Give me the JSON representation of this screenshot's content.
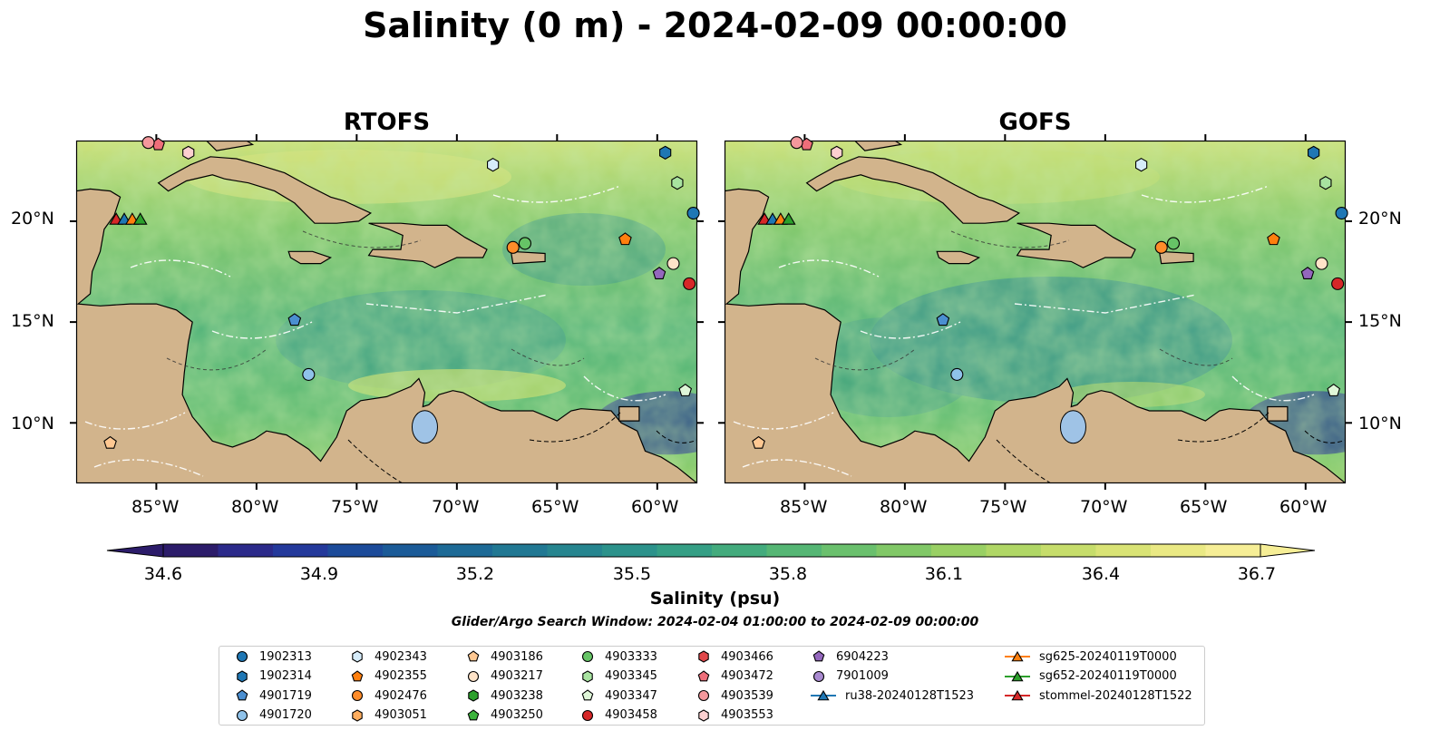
{
  "title": "Salinity (0 m) - 2024-02-09 00:00:00",
  "panels": [
    {
      "title": "RTOFS"
    },
    {
      "title": "GOFS"
    }
  ],
  "lon_ticks": [
    "85°W",
    "80°W",
    "75°W",
    "70°W",
    "65°W",
    "60°W"
  ],
  "lat_ticks": [
    "20°N",
    "15°N",
    "10°N"
  ],
  "map_extent": {
    "lon": [
      -89,
      -58
    ],
    "lat": [
      7,
      24
    ]
  },
  "colorbar": {
    "label": "Salinity (psu)",
    "ticks": [
      "34.6",
      "34.9",
      "35.2",
      "35.5",
      "35.8",
      "36.1",
      "36.4",
      "36.7"
    ],
    "range": [
      34.6,
      36.7
    ],
    "colors": [
      "#2c1c6a",
      "#2b2a8a",
      "#24399b",
      "#1c4b9a",
      "#1b5b98",
      "#1d6a96",
      "#217893",
      "#26858f",
      "#2c928b",
      "#359f85",
      "#43ab7d",
      "#55b674",
      "#6ac06d",
      "#81c867",
      "#99d064",
      "#b0d766",
      "#c6dd6b",
      "#d9e375",
      "#eae984",
      "#f6ee96"
    ]
  },
  "search_window": "Glider/Argo Search Window: 2024-02-04 01:00:00 to 2024-02-09 00:00:00",
  "legend": [
    {
      "label": "1902313",
      "shape": "circle",
      "color": "#1f77b4"
    },
    {
      "label": "1902314",
      "shape": "hexagon",
      "color": "#1f77b4"
    },
    {
      "label": "4901719",
      "shape": "pentagon",
      "color": "#4b8fd1"
    },
    {
      "label": "4901720",
      "shape": "circle",
      "color": "#8fc2ea"
    },
    {
      "label": "4902343",
      "shape": "hexagon",
      "color": "#d6ecfa"
    },
    {
      "label": "4902355",
      "shape": "pentagon",
      "color": "#ff7f0e"
    },
    {
      "label": "4902476",
      "shape": "circle",
      "color": "#ff8c2a"
    },
    {
      "label": "4903051",
      "shape": "hexagon",
      "color": "#ffad5e"
    },
    {
      "label": "4903186",
      "shape": "pentagon",
      "color": "#ffc892"
    },
    {
      "label": "4903217",
      "shape": "circle",
      "color": "#ffe3c8"
    },
    {
      "label": "4903238",
      "shape": "hexagon",
      "color": "#2ca02c"
    },
    {
      "label": "4903250",
      "shape": "pentagon",
      "color": "#3cb33c"
    },
    {
      "label": "4903333",
      "shape": "circle",
      "color": "#66c466"
    },
    {
      "label": "4903345",
      "shape": "hexagon",
      "color": "#a8e3a0"
    },
    {
      "label": "4903347",
      "shape": "pentagon",
      "color": "#dff6d8"
    },
    {
      "label": "4903458",
      "shape": "circle",
      "color": "#d62728"
    },
    {
      "label": "4903466",
      "shape": "hexagon",
      "color": "#e0474a"
    },
    {
      "label": "4903472",
      "shape": "pentagon",
      "color": "#ee6e7a"
    },
    {
      "label": "4903539",
      "shape": "circle",
      "color": "#f4989c"
    },
    {
      "label": "4903553",
      "shape": "hexagon",
      "color": "#fcd0d0"
    },
    {
      "label": "6904223",
      "shape": "pentagon",
      "color": "#9467bd"
    },
    {
      "label": "7901009",
      "shape": "circle",
      "color": "#a98ad0"
    },
    {
      "label": "ru38-20240128T1523",
      "shape": "triangle-line",
      "color": "#1f77b4"
    },
    {
      "label": "sg625-20240119T0000",
      "shape": "triangle-line",
      "color": "#ff7f0e"
    },
    {
      "label": "sg652-20240119T0000",
      "shape": "triangle-line",
      "color": "#2ca02c"
    },
    {
      "label": "stommel-20240128T1522",
      "shape": "triangle-line",
      "color": "#d62728"
    }
  ],
  "markers": [
    {
      "id": "1902313",
      "lon": -58.2,
      "lat": 20.4
    },
    {
      "id": "1902314",
      "lon": -59.6,
      "lat": 23.4
    },
    {
      "id": "4901719",
      "lon": -78.1,
      "lat": 15.1
    },
    {
      "id": "4901720",
      "lon": -77.4,
      "lat": 12.4
    },
    {
      "id": "4902343",
      "lon": -68.2,
      "lat": 22.8
    },
    {
      "id": "4902355",
      "lon": -61.6,
      "lat": 19.1
    },
    {
      "id": "4902476",
      "lon": -67.2,
      "lat": 18.7
    },
    {
      "id": "4903186",
      "lon": -87.3,
      "lat": 9.0
    },
    {
      "id": "4903217",
      "lon": -59.2,
      "lat": 17.9
    },
    {
      "id": "4903333",
      "lon": -66.6,
      "lat": 18.9
    },
    {
      "id": "4903345",
      "lon": -59.0,
      "lat": 21.9
    },
    {
      "id": "4903347",
      "lon": -58.6,
      "lat": 11.6
    },
    {
      "id": "4903458",
      "lon": -58.4,
      "lat": 16.9
    },
    {
      "id": "4903472",
      "lon": -84.9,
      "lat": 23.8
    },
    {
      "id": "4903539",
      "lon": -85.4,
      "lat": 23.9
    },
    {
      "id": "4903553",
      "lon": -83.4,
      "lat": 23.4
    },
    {
      "id": "6904223",
      "lon": -59.9,
      "lat": 17.4
    }
  ],
  "glider_positions": [
    {
      "id": "stommel-20240128T1522",
      "lon": -87.0,
      "lat": 20.1
    },
    {
      "id": "ru38-20240128T1523",
      "lon": -86.6,
      "lat": 20.1
    },
    {
      "id": "sg625-20240119T0000",
      "lon": -86.2,
      "lat": 20.1
    },
    {
      "id": "sg652-20240119T0000",
      "lon": -85.8,
      "lat": 20.1
    }
  ]
}
